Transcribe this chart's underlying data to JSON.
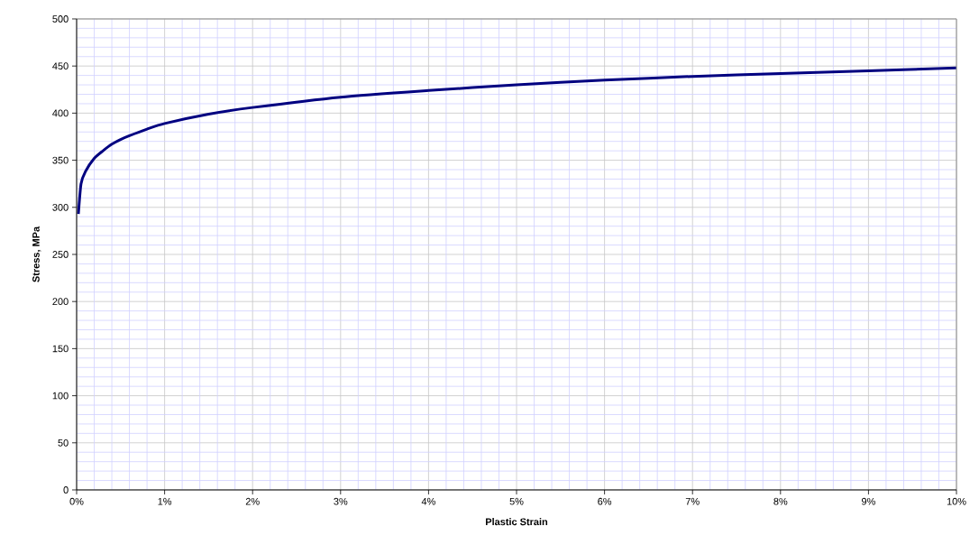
{
  "chart_data": {
    "type": "line",
    "xlabel": "Plastic Strain",
    "ylabel": "Stress, MPa",
    "xlim": [
      0,
      10
    ],
    "ylim": [
      0,
      500
    ],
    "xticks": [
      {
        "value": 0,
        "label": "0%"
      },
      {
        "value": 0.2,
        "label": null
      },
      {
        "value": 0.4,
        "label": null
      },
      {
        "value": 0.6,
        "label": null
      },
      {
        "value": 0.8,
        "label": null
      },
      {
        "value": 1,
        "label": "1%"
      },
      {
        "value": 1.2,
        "label": null
      },
      {
        "value": 1.4,
        "label": null
      },
      {
        "value": 1.6,
        "label": null
      },
      {
        "value": 1.8,
        "label": null
      },
      {
        "value": 2,
        "label": "2%"
      },
      {
        "value": 2.2,
        "label": null
      },
      {
        "value": 2.4,
        "label": null
      },
      {
        "value": 2.6,
        "label": null
      },
      {
        "value": 2.8,
        "label": null
      },
      {
        "value": 3,
        "label": "3%"
      },
      {
        "value": 3.2,
        "label": null
      },
      {
        "value": 3.4,
        "label": null
      },
      {
        "value": 3.6,
        "label": null
      },
      {
        "value": 3.8,
        "label": null
      },
      {
        "value": 4,
        "label": "4%"
      },
      {
        "value": 4.2,
        "label": null
      },
      {
        "value": 4.4,
        "label": null
      },
      {
        "value": 4.6,
        "label": null
      },
      {
        "value": 4.8,
        "label": null
      },
      {
        "value": 5,
        "label": "5%"
      },
      {
        "value": 5.2,
        "label": null
      },
      {
        "value": 5.4,
        "label": null
      },
      {
        "value": 5.6,
        "label": null
      },
      {
        "value": 5.8,
        "label": null
      },
      {
        "value": 6,
        "label": "6%"
      },
      {
        "value": 6.2,
        "label": null
      },
      {
        "value": 6.4,
        "label": null
      },
      {
        "value": 6.6,
        "label": null
      },
      {
        "value": 6.8,
        "label": null
      },
      {
        "value": 7,
        "label": "7%"
      },
      {
        "value": 7.2,
        "label": null
      },
      {
        "value": 7.4,
        "label": null
      },
      {
        "value": 7.6,
        "label": null
      },
      {
        "value": 7.8,
        "label": null
      },
      {
        "value": 8,
        "label": "8%"
      },
      {
        "value": 8.2,
        "label": null
      },
      {
        "value": 8.4,
        "label": null
      },
      {
        "value": 8.6,
        "label": null
      },
      {
        "value": 8.8,
        "label": null
      },
      {
        "value": 9,
        "label": "9%"
      },
      {
        "value": 9.2,
        "label": null
      },
      {
        "value": 9.4,
        "label": null
      },
      {
        "value": 9.6,
        "label": null
      },
      {
        "value": 9.8,
        "label": null
      },
      {
        "value": 10,
        "label": "10%"
      }
    ],
    "yticks": [
      0,
      {
        "value": 10,
        "label": null
      },
      {
        "value": 20,
        "label": null
      },
      {
        "value": 30,
        "label": null
      },
      {
        "value": 40,
        "label": null
      },
      50,
      {
        "value": 60,
        "label": null
      },
      {
        "value": 70,
        "label": null
      },
      {
        "value": 80,
        "label": null
      },
      {
        "value": 90,
        "label": null
      },
      100,
      {
        "value": 110,
        "label": null
      },
      {
        "value": 120,
        "label": null
      },
      {
        "value": 130,
        "label": null
      },
      {
        "value": 140,
        "label": null
      },
      150,
      {
        "value": 160,
        "label": null
      },
      {
        "value": 170,
        "label": null
      },
      {
        "value": 180,
        "label": null
      },
      {
        "value": 190,
        "label": null
      },
      200,
      {
        "value": 210,
        "label": null
      },
      {
        "value": 220,
        "label": null
      },
      {
        "value": 230,
        "label": null
      },
      {
        "value": 240,
        "label": null
      },
      250,
      {
        "value": 260,
        "label": null
      },
      {
        "value": 270,
        "label": null
      },
      {
        "value": 280,
        "label": null
      },
      {
        "value": 290,
        "label": null
      },
      300,
      {
        "value": 310,
        "label": null
      },
      {
        "value": 320,
        "label": null
      },
      {
        "value": 330,
        "label": null
      },
      {
        "value": 340,
        "label": null
      },
      350,
      {
        "value": 360,
        "label": null
      },
      {
        "value": 370,
        "label": null
      },
      {
        "value": 380,
        "label": null
      },
      {
        "value": 390,
        "label": null
      },
      400,
      {
        "value": 410,
        "label": null
      },
      {
        "value": 420,
        "label": null
      },
      {
        "value": 430,
        "label": null
      },
      {
        "value": 440,
        "label": null
      },
      450,
      {
        "value": 460,
        "label": null
      },
      {
        "value": 470,
        "label": null
      },
      {
        "value": 480,
        "label": null
      },
      {
        "value": 490,
        "label": null
      },
      500
    ],
    "grid": true,
    "marker": "none",
    "line_style": "solid",
    "series": [
      {
        "color": "#000080",
        "x": [
          0.02,
          0.05,
          0.1,
          0.2,
          0.3,
          0.4,
          0.5,
          0.6,
          0.8,
          1,
          1.5,
          2,
          3,
          4,
          5,
          6,
          7,
          8,
          9,
          10
        ],
        "values": [
          293,
          325,
          338,
          352,
          360,
          367,
          372,
          376,
          383,
          389,
          399,
          406,
          417,
          424,
          430,
          435,
          439,
          442,
          445,
          448
        ]
      }
    ]
  }
}
